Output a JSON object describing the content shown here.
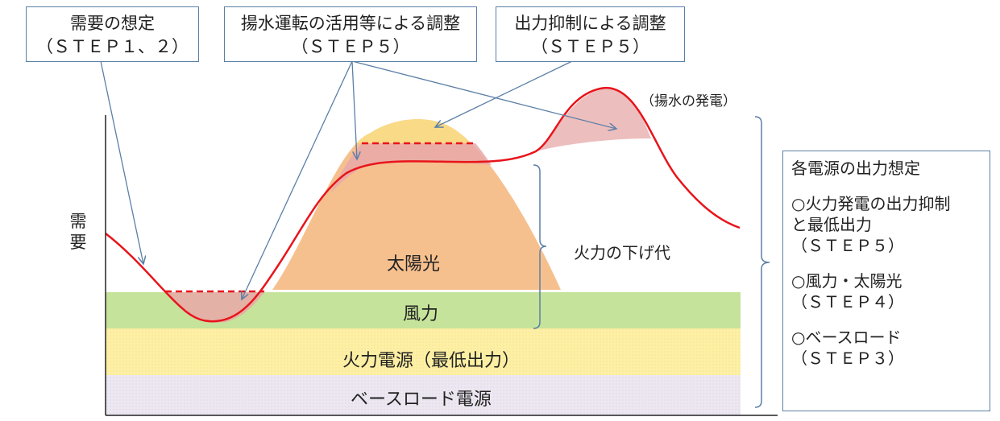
{
  "callouts": {
    "demand": {
      "line1": "需要の想定",
      "line2": "（ＳＴＥＰ１、２）"
    },
    "pumped": {
      "line1": "揚水運転の活用等による調整",
      "line2": "（ＳＴＥＰ５）"
    },
    "curtail": {
      "line1": "出力抑制による調整",
      "line2": "（ＳＴＥＰ５）"
    }
  },
  "labels": {
    "y_axis": "需要",
    "pumped_generation": "（揚水の発電）",
    "solar": "太陽光",
    "wind": "風力",
    "thermal_min": "火力電源（最低出力）",
    "baseload": "ベースロード電源",
    "thermal_margin": "火力の下げ代"
  },
  "legend": {
    "title": "各電源の出力想定",
    "item1_line1": "○火力発電の出力抑制",
    "item1_line2": "と最低出力",
    "item1_step": "（ＳＴＥＰ５）",
    "item2_line1": "○風力・太陽光",
    "item2_step": "（ＳＴＥＰ４）",
    "item3_line1": "○ベースロード",
    "item3_step": "（ＳＴＥＰ３）"
  },
  "colors": {
    "baseload": "#ebe6f0",
    "thermal": "#fdf0a6",
    "wind": "#c5e39a",
    "solar": "#f6c08e",
    "solar_top": "#f9da86",
    "surplus": "#e7a8a8",
    "demand_line": "#e8141b",
    "arrow": "#5b7fa6"
  }
}
